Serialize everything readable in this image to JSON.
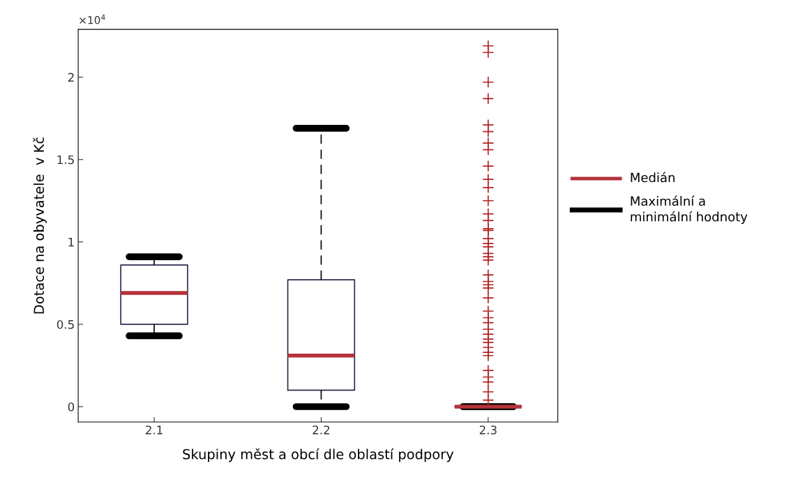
{
  "chart_data": {
    "type": "box",
    "xlabel": "Skupiny měst a obcí dle oblastí podpory",
    "ylabel": "Dotace na obyvatele  v Kč",
    "categories": [
      "2.1",
      "2.2",
      "2.3"
    ],
    "boxes": [
      {
        "low": 0.43,
        "q1": 0.5,
        "median": 0.69,
        "q3": 0.86,
        "high": 0.91
      },
      {
        "low": 0,
        "q1": 0.1,
        "median": 0.31,
        "q3": 0.77,
        "high": 1.69
      },
      {
        "low": 0,
        "q1": 0,
        "median": 0,
        "q3": 0,
        "high": 0,
        "outliers": [
          2.19,
          2.15,
          1.97,
          1.87,
          1.71,
          1.67,
          1.6,
          1.56,
          1.46,
          1.38,
          1.33,
          1.25,
          1.17,
          1.13,
          1.08,
          1.07,
          1.02,
          0.99,
          0.97,
          0.93,
          0.91,
          0.89,
          0.8,
          0.76,
          0.74,
          0.72,
          0.66,
          0.58,
          0.54,
          0.51,
          0.47,
          0.44,
          0.41,
          0.39,
          0.36,
          0.33,
          0.31,
          0.22,
          0.18,
          0.15,
          0.09,
          0.04
        ]
      }
    ],
    "color": "#2b2b4f",
    "annotations": [
      "×10$^{4}$",
      "Medián",
      "Maximální a minimální hodnoty"
    ],
    "ylim": [
      -0.093,
      2.29
    ],
    "yticks": [
      0,
      0.5,
      1,
      1.5,
      2
    ],
    "grid": false
  }
}
